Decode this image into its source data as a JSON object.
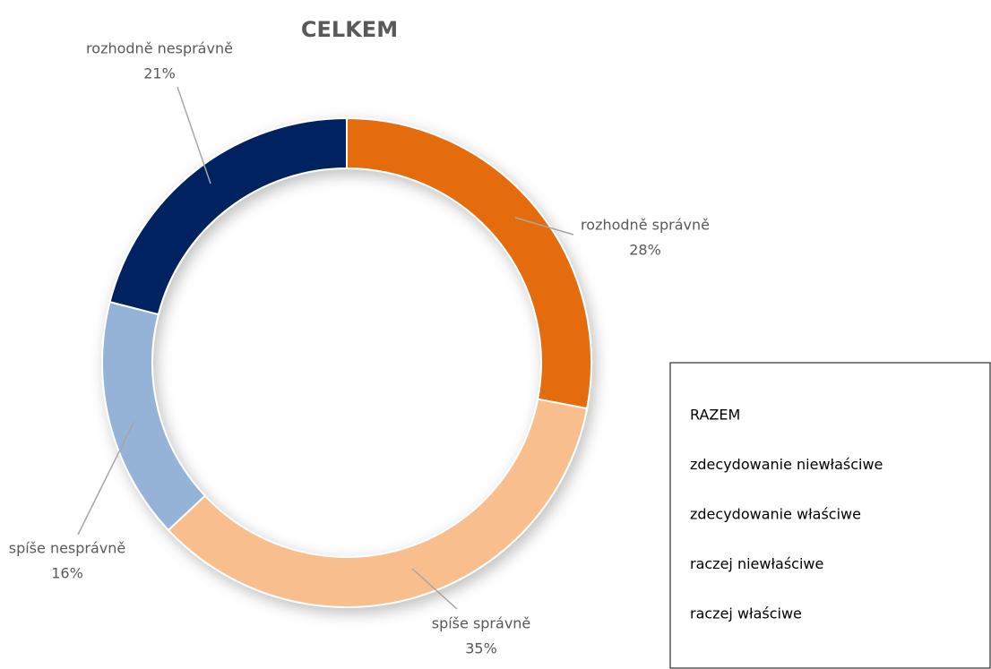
{
  "chart_data": {
    "type": "donut",
    "title": "CELKEM",
    "categories": [
      "rozhodně správně",
      "spíše správně",
      "spíše nesprávně",
      "rozhodně nesprávně"
    ],
    "values": [
      28,
      35,
      16,
      21
    ],
    "value_labels": [
      "28%",
      "35%",
      "16%",
      "21%"
    ],
    "colors": [
      "#e46c0a",
      "#f9be8e",
      "#95b3d7",
      "#002060"
    ]
  },
  "note_box": {
    "lines": [
      "RAZEM",
      "zdecydowanie niewłaściwe",
      "zdecydowanie właściwe",
      "raczej niewłaściwe",
      "raczej właściwe"
    ]
  }
}
